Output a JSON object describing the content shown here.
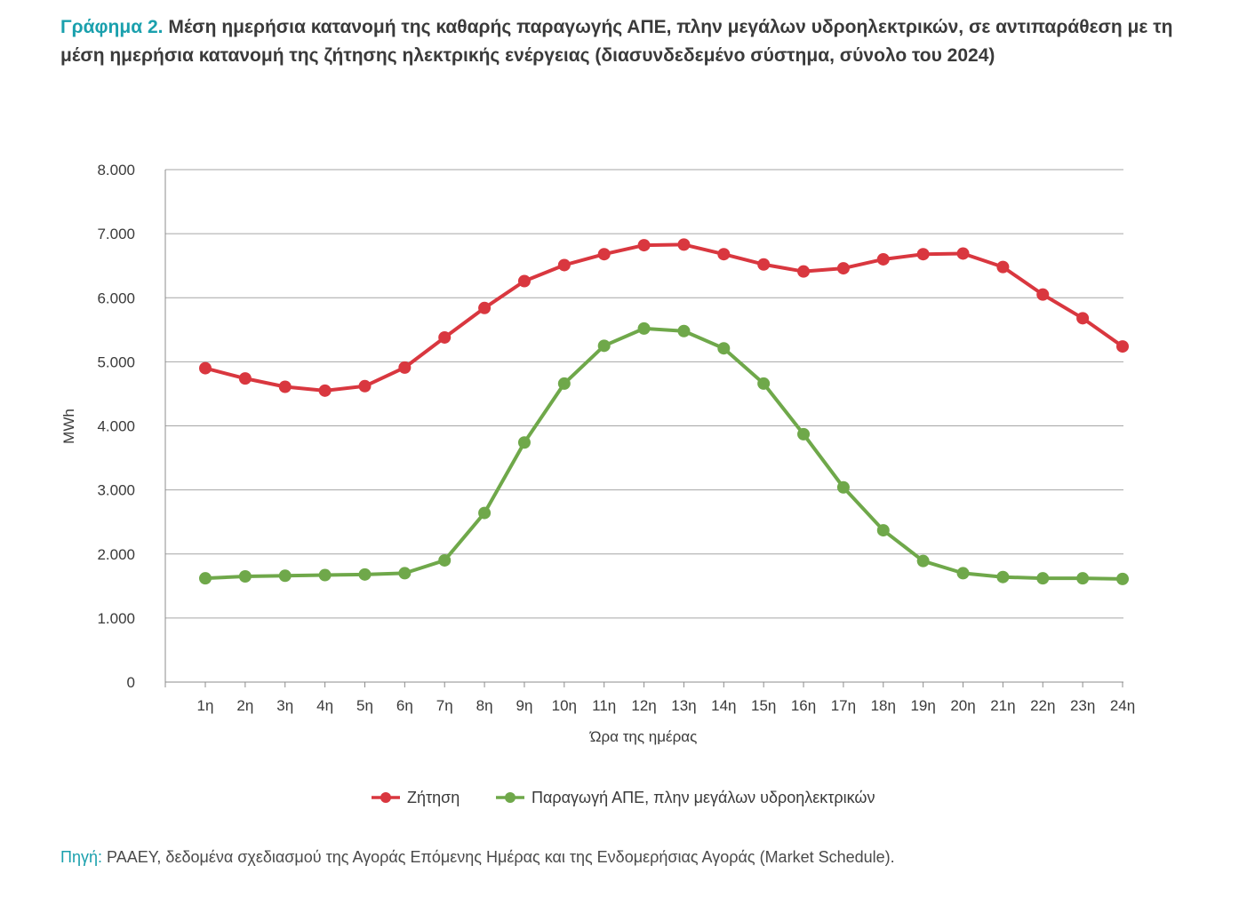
{
  "header": {
    "title_prefix": "Γράφημα 2.",
    "title_text": "Μέση ημερήσια κατανομή της καθαρής παραγωγής ΑΠΕ, πλην μεγάλων υδροηλεκτρικών, σε αντιπαράθεση με τη μέση ημερήσια κατανομή της ζήτησης ηλεκτρικής ενέργειας (διασυνδεδεμένο σύστημα, σύνολο του 2024)"
  },
  "chart_data": {
    "type": "line",
    "categories": [
      "1η",
      "2η",
      "3η",
      "4η",
      "5η",
      "6η",
      "7η",
      "8η",
      "9η",
      "10η",
      "11η",
      "12η",
      "13η",
      "14η",
      "15η",
      "16η",
      "17η",
      "18η",
      "19η",
      "20η",
      "21η",
      "22η",
      "23η",
      "24η"
    ],
    "xlabel": "Ώρα της ημέρας",
    "ylabel": "MWh",
    "ylim": [
      0,
      8000
    ],
    "yticks": [
      0,
      1000,
      2000,
      3000,
      4000,
      5000,
      6000,
      7000,
      8000
    ],
    "ytick_labels": [
      "0",
      "1.000",
      "2.000",
      "3.000",
      "4.000",
      "5.000",
      "6.000",
      "7.000",
      "8.000"
    ],
    "grid": "horizontal",
    "legend_position": "bottom",
    "series": [
      {
        "name": "Ζήτηση",
        "color": "#d9373f",
        "values": [
          4900,
          4740,
          4610,
          4550,
          4620,
          4910,
          5380,
          5840,
          6260,
          6510,
          6680,
          6820,
          6830,
          6680,
          6520,
          6410,
          6460,
          6600,
          6680,
          6690,
          6480,
          6050,
          5680,
          5240
        ]
      },
      {
        "name": "Παραγωγή ΑΠΕ, πλην μεγάλων υδροηλεκτρικών",
        "color": "#6fa84a",
        "values": [
          1620,
          1650,
          1660,
          1670,
          1680,
          1700,
          1900,
          2640,
          3740,
          4660,
          5250,
          5520,
          5480,
          5210,
          4660,
          3870,
          3040,
          2370,
          1890,
          1700,
          1640,
          1620,
          1620,
          1610
        ]
      }
    ]
  },
  "footer": {
    "source_prefix": "Πηγή:",
    "source_text": " ΡΑΑΕΥ, δεδομένα σχεδιασμού της Αγοράς Επόμενης Ημέρας και της Ενδομερήσιας Αγοράς (Market Schedule)."
  }
}
